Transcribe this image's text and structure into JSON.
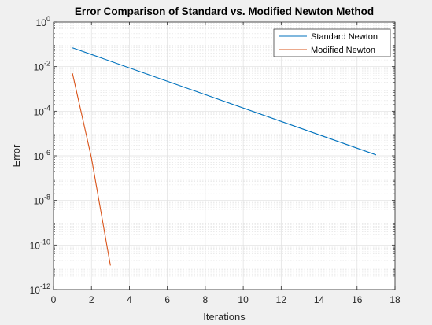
{
  "chart_data": {
    "type": "line",
    "title": "Error Comparison of Standard vs. Modified Newton Method",
    "xlabel": "Iterations",
    "ylabel": "Error",
    "xlim": [
      0,
      18
    ],
    "ylim": [
      1e-12,
      1
    ],
    "yscale": "log",
    "grid": true,
    "minor_grid": true,
    "legend_position": "top-right",
    "x_ticks": [
      0,
      2,
      4,
      6,
      8,
      10,
      12,
      14,
      16,
      18
    ],
    "y_ticks": [
      {
        "value": 1e-12,
        "base": "10",
        "exp": "-12"
      },
      {
        "value": 1e-10,
        "base": "10",
        "exp": "-10"
      },
      {
        "value": 1e-08,
        "base": "10",
        "exp": "-8"
      },
      {
        "value": 1e-06,
        "base": "10",
        "exp": "-6"
      },
      {
        "value": 0.0001,
        "base": "10",
        "exp": "-4"
      },
      {
        "value": 0.01,
        "base": "10",
        "exp": "-2"
      },
      {
        "value": 1,
        "base": "10",
        "exp": "0"
      }
    ],
    "series": [
      {
        "name": "Standard Newton",
        "color": "#0072bd",
        "x": [
          1,
          17
        ],
        "y": [
          0.07,
          1.1e-06
        ]
      },
      {
        "name": "Modified Newton",
        "color": "#d95319",
        "x": [
          1,
          2,
          3
        ],
        "y": [
          0.005,
          8e-07,
          1.2e-11
        ]
      }
    ]
  },
  "colors": {
    "figure_bg": "#f0f0f0",
    "axes_bg": "#ffffff",
    "axis": "#262626",
    "grid": "#dfdfdf"
  }
}
